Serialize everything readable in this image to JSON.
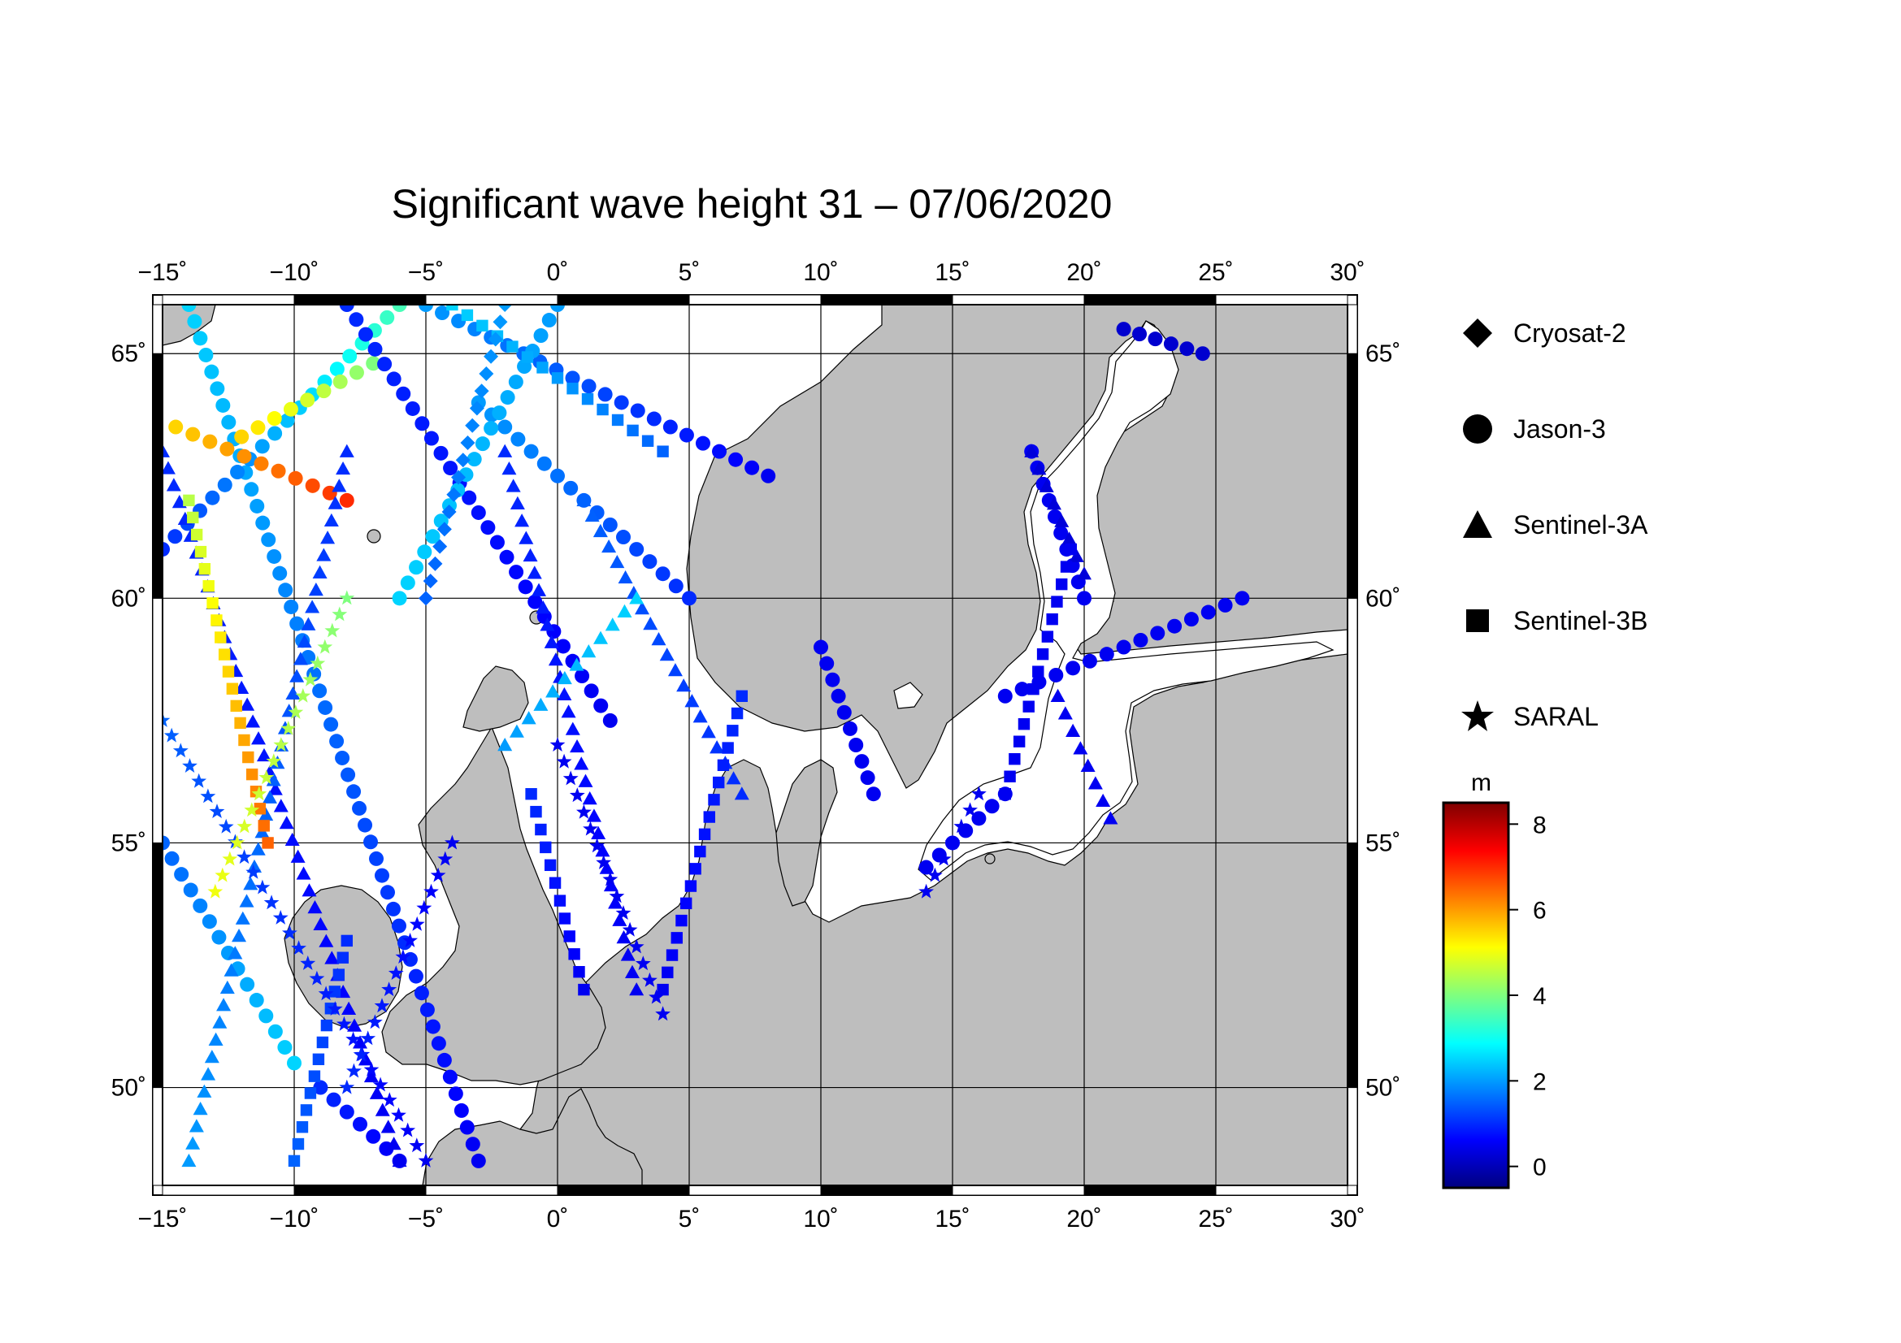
{
  "title": "Significant wave height 31 – 07/06/2020",
  "map": {
    "lon_range": [
      -15,
      30
    ],
    "lat_range": [
      48,
      66
    ],
    "lon_ticks": [
      -15,
      -10,
      -5,
      0,
      5,
      10,
      15,
      20,
      25,
      30
    ],
    "lat_ticks": [
      50,
      55,
      60,
      65
    ],
    "lon_labels": [
      "−15˚",
      "−10˚",
      "−5˚",
      "0˚",
      "5˚",
      "10˚",
      "15˚",
      "20˚",
      "25˚",
      "30˚"
    ],
    "lat_labels": [
      "50˚",
      "55˚",
      "60˚",
      "65˚"
    ],
    "land_color": "#bebebe",
    "sea_color": "#ffffff",
    "grid": true
  },
  "legend": {
    "items": [
      {
        "label": "Cryosat-2",
        "shape": "diamond"
      },
      {
        "label": "Jason-3",
        "shape": "circle"
      },
      {
        "label": "Sentinel-3A",
        "shape": "triangle"
      },
      {
        "label": "Sentinel-3B",
        "shape": "square"
      },
      {
        "label": "SARAL",
        "shape": "star"
      }
    ]
  },
  "colorbar": {
    "unit": "m",
    "min": -0.5,
    "max": 8.5,
    "ticks": [
      0,
      2,
      4,
      6,
      8
    ],
    "tick_labels": [
      "0",
      "2",
      "4",
      "6",
      "8"
    ],
    "colormap": [
      "#00007f",
      "#0000ff",
      "#007fff",
      "#00ffff",
      "#7fff7f",
      "#ffff00",
      "#ff7f00",
      "#ff0000",
      "#7f0000"
    ]
  },
  "tracks": [
    {
      "satellite": "Jason-3",
      "shape": "circle",
      "start": [
        -14,
        66
      ],
      "end": [
        -3,
        48.5
      ],
      "hs_start": 2.5,
      "hs_end": 0.5
    },
    {
      "satellite": "Jason-3",
      "shape": "circle",
      "start": [
        -15,
        61
      ],
      "end": [
        -6,
        66
      ],
      "hs_start": 1.0,
      "hs_end": 3.5
    },
    {
      "satellite": "Jason-3",
      "shape": "circle",
      "start": [
        -14.5,
        63.5
      ],
      "end": [
        -8,
        62
      ],
      "hs_start": 5.5,
      "hs_end": 7.0
    },
    {
      "satellite": "Jason-3",
      "shape": "circle",
      "start": [
        -12,
        63.3
      ],
      "end": [
        -7,
        64.8
      ],
      "hs_start": 5.5,
      "hs_end": 4.0
    },
    {
      "satellite": "Jason-3",
      "shape": "circle",
      "start": [
        -8,
        66
      ],
      "end": [
        2,
        57.5
      ],
      "hs_start": 1.0,
      "hs_end": 0.5
    },
    {
      "satellite": "Jason-3",
      "shape": "circle",
      "start": [
        -5,
        66
      ],
      "end": [
        8,
        62.5
      ],
      "hs_start": 2.0,
      "hs_end": 0.5
    },
    {
      "satellite": "Jason-3",
      "shape": "circle",
      "start": [
        -3,
        64
      ],
      "end": [
        5,
        60
      ],
      "hs_start": 2.0,
      "hs_end": 1.0
    },
    {
      "satellite": "Jason-3",
      "shape": "circle",
      "start": [
        -15,
        55
      ],
      "end": [
        -10,
        50.5
      ],
      "hs_start": 1.5,
      "hs_end": 2.5
    },
    {
      "satellite": "Jason-3",
      "shape": "circle",
      "start": [
        -9,
        50
      ],
      "end": [
        -6,
        48.5
      ],
      "hs_start": 1.0,
      "hs_end": 0.5
    },
    {
      "satellite": "Jason-3",
      "shape": "circle",
      "start": [
        10,
        59
      ],
      "end": [
        12,
        56
      ],
      "hs_start": 0.5,
      "hs_end": 0.5
    },
    {
      "satellite": "Jason-3",
      "shape": "circle",
      "start": [
        17,
        58
      ],
      "end": [
        26,
        60
      ],
      "hs_start": 0.5,
      "hs_end": 0.5
    },
    {
      "satellite": "Jason-3",
      "shape": "circle",
      "start": [
        18,
        63
      ],
      "end": [
        20,
        60
      ],
      "hs_start": 0.5,
      "hs_end": 0.5
    },
    {
      "satellite": "Jason-3",
      "shape": "circle",
      "start": [
        21.5,
        65.5
      ],
      "end": [
        24.5,
        65
      ],
      "hs_start": 0.2,
      "hs_end": 0.2
    },
    {
      "satellite": "Jason-3",
      "shape": "circle",
      "start": [
        14,
        54.5
      ],
      "end": [
        17,
        56
      ],
      "hs_start": 0.5,
      "hs_end": 0.5
    },
    {
      "satellite": "Jason-3",
      "shape": "circle",
      "start": [
        -6,
        60
      ],
      "end": [
        0,
        66
      ],
      "hs_start": 2.5,
      "hs_end": 2.0
    },
    {
      "satellite": "Sentinel-3A",
      "shape": "triangle",
      "start": [
        -15,
        63
      ],
      "end": [
        -6,
        48.5
      ],
      "hs_start": 1.0,
      "hs_end": 0.5
    },
    {
      "satellite": "Sentinel-3A",
      "shape": "triangle",
      "start": [
        -14,
        48.5
      ],
      "end": [
        -8,
        63
      ],
      "hs_start": 2.0,
      "hs_end": 1.0
    },
    {
      "satellite": "Sentinel-3A",
      "shape": "triangle",
      "start": [
        -2,
        63
      ],
      "end": [
        3,
        52
      ],
      "hs_start": 1.0,
      "hs_end": 0.5
    },
    {
      "satellite": "Sentinel-3A",
      "shape": "triangle",
      "start": [
        1,
        62
      ],
      "end": [
        7,
        56
      ],
      "hs_start": 1.5,
      "hs_end": 1.0
    },
    {
      "satellite": "Sentinel-3A",
      "shape": "triangle",
      "start": [
        18,
        63
      ],
      "end": [
        20,
        60.5
      ],
      "hs_start": 0.3,
      "hs_end": 0.3
    },
    {
      "satellite": "Sentinel-3A",
      "shape": "triangle",
      "start": [
        19,
        58
      ],
      "end": [
        21,
        55.5
      ],
      "hs_start": 0.5,
      "hs_end": 0.5
    },
    {
      "satellite": "Sentinel-3A",
      "shape": "triangle",
      "start": [
        -2,
        57
      ],
      "end": [
        3,
        60
      ],
      "hs_start": 2.0,
      "hs_end": 2.5
    },
    {
      "satellite": "Sentinel-3B",
      "shape": "square",
      "start": [
        -14,
        62
      ],
      "end": [
        -11,
        55
      ],
      "hs_start": 4.5,
      "hs_end": 6.5
    },
    {
      "satellite": "Sentinel-3B",
      "shape": "square",
      "start": [
        -10,
        48.5
      ],
      "end": [
        -8,
        53
      ],
      "hs_start": 1.5,
      "hs_end": 1.0
    },
    {
      "satellite": "Sentinel-3B",
      "shape": "square",
      "start": [
        4,
        52
      ],
      "end": [
        7,
        58
      ],
      "hs_start": 0.5,
      "hs_end": 1.0
    },
    {
      "satellite": "Sentinel-3B",
      "shape": "square",
      "start": [
        17,
        56
      ],
      "end": [
        19.5,
        61
      ],
      "hs_start": 0.5,
      "hs_end": 0.5
    },
    {
      "satellite": "Sentinel-3B",
      "shape": "square",
      "start": [
        -1,
        56
      ],
      "end": [
        1,
        52
      ],
      "hs_start": 1.0,
      "hs_end": 0.5
    },
    {
      "satellite": "Sentinel-3B",
      "shape": "square",
      "start": [
        -4,
        66
      ],
      "end": [
        4,
        63
      ],
      "hs_start": 2.5,
      "hs_end": 1.5
    },
    {
      "satellite": "SARAL",
      "shape": "star",
      "start": [
        -15,
        57.5
      ],
      "end": [
        -5,
        48.5
      ],
      "hs_start": 1.5,
      "hs_end": 0.5
    },
    {
      "satellite": "SARAL",
      "shape": "star",
      "start": [
        0,
        57
      ],
      "end": [
        4,
        51.5
      ],
      "hs_start": 0.5,
      "hs_end": 0.5
    },
    {
      "satellite": "SARAL",
      "shape": "star",
      "start": [
        -8,
        50
      ],
      "end": [
        -4,
        55
      ],
      "hs_start": 1.0,
      "hs_end": 0.5
    },
    {
      "satellite": "SARAL",
      "shape": "star",
      "start": [
        14,
        54
      ],
      "end": [
        16,
        56
      ],
      "hs_start": 0.5,
      "hs_end": 0.5
    },
    {
      "satellite": "SARAL",
      "shape": "star",
      "start": [
        -13,
        54
      ],
      "end": [
        -8,
        60
      ],
      "hs_start": 5.0,
      "hs_end": 4.0
    },
    {
      "satellite": "Cryosat-2",
      "shape": "diamond",
      "start": [
        -5,
        60
      ],
      "end": [
        -2,
        66
      ],
      "hs_start": 1.5,
      "hs_end": 2.0
    }
  ]
}
